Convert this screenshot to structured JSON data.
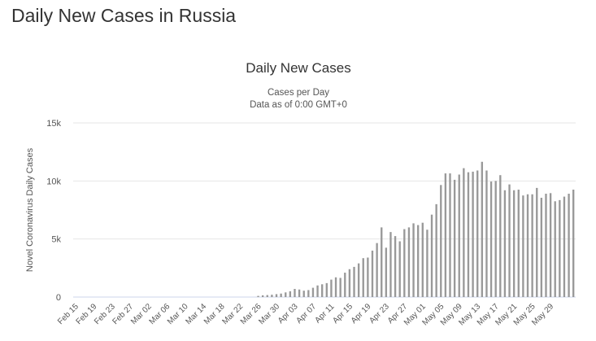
{
  "page": {
    "title": "Daily New Cases in Russia"
  },
  "chart_data": {
    "type": "bar",
    "title": "Daily New Cases",
    "subtitle_lines": [
      "Cases per Day",
      "Data as of 0:00 GMT+0"
    ],
    "ylabel": "Novel Coronavirus Daily Cases",
    "xlabel": "",
    "ylim": [
      0,
      15000
    ],
    "yticks": [
      {
        "value": 0,
        "label": "0"
      },
      {
        "value": 5000,
        "label": "5k"
      },
      {
        "value": 10000,
        "label": "10k"
      },
      {
        "value": 15000,
        "label": "15k"
      }
    ],
    "grid": true,
    "bar_color": "#999999",
    "first_date": "2020-02-15",
    "x_tick_labels": [
      "Feb 15",
      "Feb 19",
      "Feb 23",
      "Feb 27",
      "Mar 02",
      "Mar 06",
      "Mar 10",
      "Mar 14",
      "Mar 18",
      "Mar 22",
      "Mar 26",
      "Mar 30",
      "Apr 03",
      "Apr 07",
      "Apr 11",
      "Apr 15",
      "Apr 19",
      "Apr 23",
      "Apr 27",
      "May 01",
      "May 05",
      "May 09",
      "May 13",
      "May 17",
      "May 21",
      "May 25",
      "May 29"
    ],
    "values": [
      0,
      0,
      0,
      0,
      0,
      0,
      0,
      0,
      0,
      0,
      0,
      0,
      0,
      0,
      0,
      0,
      0,
      0,
      0,
      0,
      0,
      0,
      0,
      0,
      0,
      0,
      0,
      0,
      0,
      0,
      0,
      0,
      0,
      0,
      0,
      0,
      0,
      0,
      0,
      0,
      100,
      150,
      170,
      200,
      250,
      300,
      400,
      500,
      700,
      650,
      550,
      600,
      800,
      1000,
      1100,
      1200,
      1500,
      1700,
      1650,
      2100,
      2400,
      2600,
      2900,
      3350,
      3400,
      4000,
      4650,
      6000,
      4250,
      5600,
      5250,
      4800,
      5850,
      6000,
      6350,
      6200,
      6400,
      5800,
      7100,
      8000,
      9650,
      10650,
      10650,
      10100,
      10550,
      11100,
      10750,
      10800,
      10900,
      11650,
      10900,
      9950,
      10000,
      10500,
      9200,
      9700,
      9200,
      9250,
      8750,
      8850,
      8850,
      9400,
      8550,
      8900,
      8950,
      8250,
      8350,
      8650,
      8900,
      9250
    ]
  }
}
